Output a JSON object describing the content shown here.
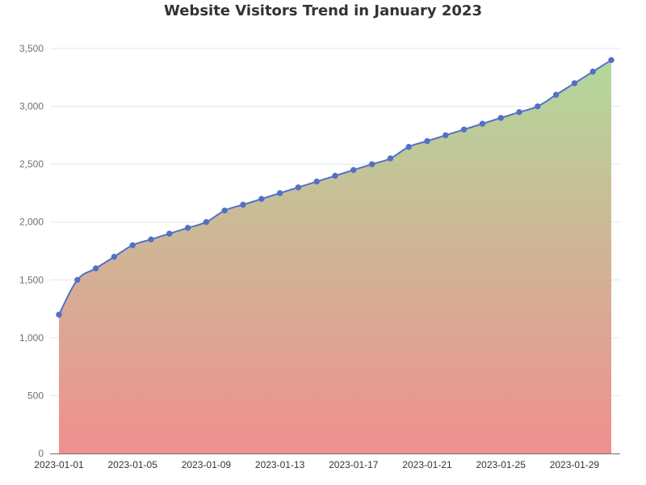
{
  "chart_data": {
    "type": "area",
    "title": "Website Visitors Trend in January 2023",
    "xlabel": "",
    "ylabel": "",
    "x": [
      "2023-01-01",
      "2023-01-02",
      "2023-01-03",
      "2023-01-04",
      "2023-01-05",
      "2023-01-06",
      "2023-01-07",
      "2023-01-08",
      "2023-01-09",
      "2023-01-10",
      "2023-01-11",
      "2023-01-12",
      "2023-01-13",
      "2023-01-14",
      "2023-01-15",
      "2023-01-16",
      "2023-01-17",
      "2023-01-18",
      "2023-01-19",
      "2023-01-20",
      "2023-01-21",
      "2023-01-22",
      "2023-01-23",
      "2023-01-24",
      "2023-01-25",
      "2023-01-26",
      "2023-01-27",
      "2023-01-28",
      "2023-01-29",
      "2023-01-30",
      "2023-01-31"
    ],
    "x_tick_labels": [
      "2023-01-01",
      "2023-01-05",
      "2023-01-09",
      "2023-01-13",
      "2023-01-17",
      "2023-01-21",
      "2023-01-25",
      "2023-01-29"
    ],
    "series": [
      {
        "values": [
          1200,
          1500,
          1600,
          1700,
          1800,
          1850,
          1900,
          1950,
          2000,
          2100,
          2150,
          2200,
          2250,
          2300,
          2350,
          2400,
          2450,
          2500,
          2550,
          2650,
          2700,
          2750,
          2800,
          2850,
          2900,
          2950,
          3000,
          3100,
          3200,
          3300,
          3400
        ],
        "color": "#5470c6"
      }
    ],
    "ylim": [
      0,
      3500
    ],
    "y_ticks": [
      0,
      500,
      1000,
      1500,
      2000,
      2500,
      3000,
      3500
    ],
    "y_tick_labels": [
      "0",
      "500",
      "1,000",
      "1,500",
      "2,000",
      "2,500",
      "3,000",
      "3,500"
    ],
    "grid": true,
    "area_gradient": {
      "top": "#b2d89b",
      "bottom": "#f08f8f"
    },
    "legend": "none"
  }
}
